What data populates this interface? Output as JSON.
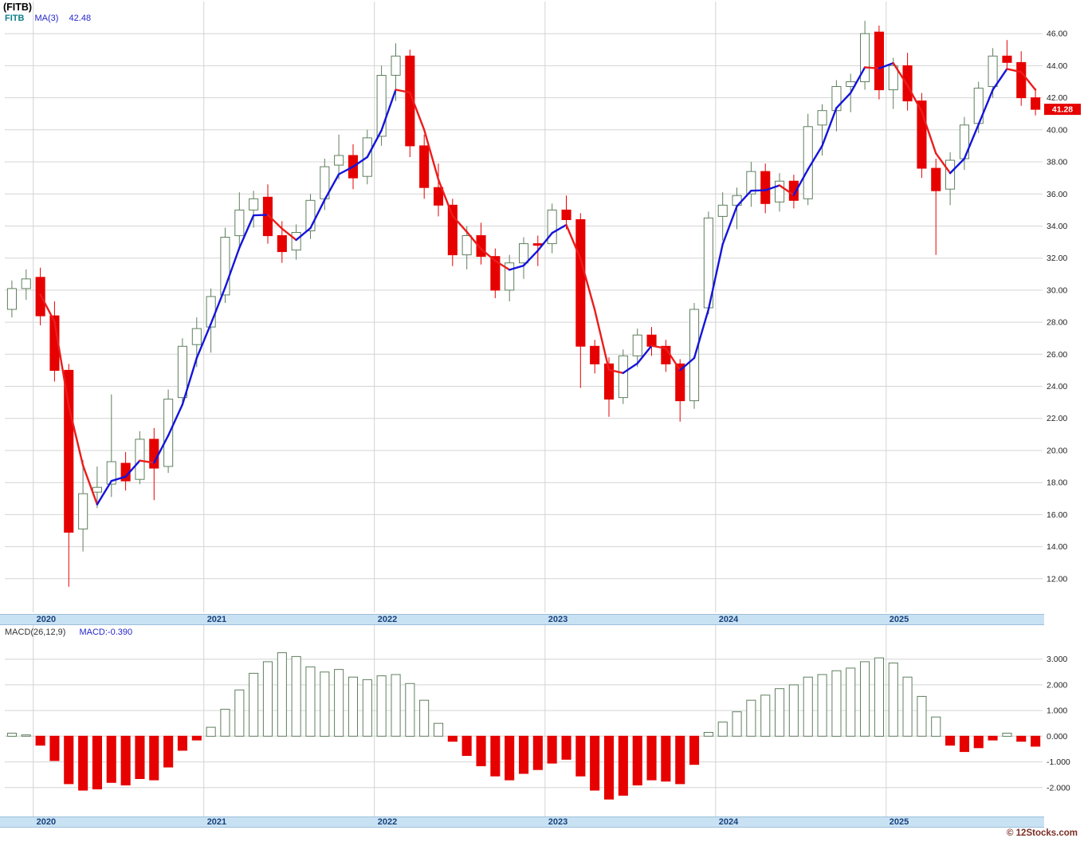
{
  "header": {
    "title": "(FITB)",
    "legend_symbol": "FITB",
    "legend_ma_label": "MA(3)",
    "legend_ma_value": "42.48"
  },
  "macd_header": {
    "label": "MACD(26,12,9)",
    "value": "MACD:-0.390"
  },
  "footer": {
    "copyright": "© 12Stocks.com"
  },
  "colors": {
    "grid": "#d4d4d4",
    "axis_text": "#222222",
    "up_fill": "#ffffff",
    "up_stroke": "#5f7f5f",
    "down": "#e60000",
    "ma_up": "#1414dc",
    "ma_down": "#ec1c1c",
    "tag_bg": "#e60000",
    "tag_text": "#ffffff",
    "strip_bg": "#c9e2f3",
    "strip_text": "#16407c",
    "copyright": "#7b2d26"
  },
  "chart_data": [
    {
      "type": "candlestick",
      "symbol": "FITB",
      "title": "(FITB)",
      "ma": {
        "label": "MA(3)",
        "value": 42.48
      },
      "last_price": "41.28",
      "years": [
        "2020",
        "2021",
        "2022",
        "2023",
        "2024",
        "2025"
      ],
      "y_ticks": [
        46,
        44,
        42,
        40,
        38,
        36,
        34,
        32,
        30,
        28,
        26,
        24,
        22,
        20,
        18,
        16,
        14,
        12
      ],
      "y_min": 10.2,
      "y_max": 47.8,
      "ohlc": [
        [
          "2019-11",
          28.8,
          30.6,
          28.3,
          30.1
        ],
        [
          "2019-12",
          30.1,
          31.3,
          29.4,
          30.7
        ],
        [
          "2020-01",
          30.8,
          31.4,
          27.8,
          28.4
        ],
        [
          "2020-02",
          28.4,
          29.3,
          24.3,
          25.0
        ],
        [
          "2020-03",
          25.0,
          25.4,
          11.5,
          14.9
        ],
        [
          "2020-04",
          15.1,
          19.4,
          13.7,
          17.3
        ],
        [
          "2020-05",
          17.4,
          19.0,
          16.4,
          17.7
        ],
        [
          "2020-06",
          17.9,
          23.5,
          17.1,
          19.3
        ],
        [
          "2020-07",
          19.2,
          19.9,
          17.5,
          18.1
        ],
        [
          "2020-08",
          18.2,
          21.2,
          17.9,
          20.7
        ],
        [
          "2020-09",
          20.7,
          21.4,
          16.9,
          18.9
        ],
        [
          "2020-10",
          19.0,
          23.8,
          18.6,
          23.2
        ],
        [
          "2020-11",
          23.3,
          27.0,
          22.8,
          26.5
        ],
        [
          "2020-12",
          26.6,
          28.3,
          25.2,
          27.6
        ],
        [
          "2021-01",
          27.7,
          30.1,
          26.1,
          29.6
        ],
        [
          "2021-02",
          29.7,
          33.9,
          29.2,
          33.3
        ],
        [
          "2021-03",
          33.4,
          36.1,
          32.5,
          35.0
        ],
        [
          "2021-04",
          35.0,
          36.2,
          33.9,
          35.7
        ],
        [
          "2021-05",
          35.8,
          36.6,
          32.9,
          33.4
        ],
        [
          "2021-06",
          33.4,
          34.3,
          31.7,
          32.4
        ],
        [
          "2021-07",
          32.5,
          34.1,
          31.9,
          33.6
        ],
        [
          "2021-08",
          33.7,
          36.0,
          33.2,
          35.6
        ],
        [
          "2021-09",
          35.7,
          38.2,
          35.0,
          37.7
        ],
        [
          "2021-10",
          37.8,
          39.7,
          36.9,
          38.4
        ],
        [
          "2021-11",
          38.4,
          39.1,
          36.3,
          37.0
        ],
        [
          "2021-12",
          37.1,
          40.0,
          36.6,
          39.5
        ],
        [
          "2022-01",
          39.6,
          44.0,
          39.0,
          43.4
        ],
        [
          "2022-02",
          43.4,
          45.4,
          41.8,
          44.6
        ],
        [
          "2022-03",
          44.6,
          45.0,
          38.3,
          39.0
        ],
        [
          "2022-04",
          39.0,
          39.7,
          35.7,
          36.4
        ],
        [
          "2022-05",
          36.4,
          37.9,
          34.6,
          35.3
        ],
        [
          "2022-06",
          35.3,
          35.7,
          31.5,
          32.2
        ],
        [
          "2022-07",
          32.2,
          34.0,
          31.3,
          33.4
        ],
        [
          "2022-08",
          33.4,
          34.2,
          31.6,
          32.1
        ],
        [
          "2022-09",
          32.1,
          32.6,
          29.5,
          30.0
        ],
        [
          "2022-10",
          30.0,
          32.2,
          29.3,
          31.7
        ],
        [
          "2022-11",
          31.7,
          33.3,
          30.7,
          32.9
        ],
        [
          "2022-12",
          32.9,
          33.4,
          31.5,
          32.8
        ],
        [
          "2023-01",
          32.9,
          35.4,
          32.3,
          35.0
        ],
        [
          "2023-02",
          35.0,
          35.9,
          33.8,
          34.4
        ],
        [
          "2023-03",
          34.4,
          34.8,
          23.9,
          26.5
        ],
        [
          "2023-04",
          26.5,
          26.9,
          24.8,
          25.4
        ],
        [
          "2023-05",
          25.4,
          25.8,
          22.1,
          23.2
        ],
        [
          "2023-06",
          23.3,
          26.3,
          22.9,
          25.9
        ],
        [
          "2023-07",
          25.9,
          27.6,
          25.2,
          27.2
        ],
        [
          "2023-08",
          27.2,
          27.7,
          25.9,
          26.5
        ],
        [
          "2023-09",
          26.5,
          26.9,
          24.9,
          25.4
        ],
        [
          "2023-10",
          25.4,
          25.7,
          21.8,
          23.1
        ],
        [
          "2023-11",
          23.1,
          29.2,
          22.6,
          28.8
        ],
        [
          "2023-12",
          28.9,
          34.9,
          28.5,
          34.5
        ],
        [
          "2024-01",
          34.6,
          36.1,
          33.1,
          35.3
        ],
        [
          "2024-02",
          35.3,
          36.4,
          33.8,
          35.9
        ],
        [
          "2024-03",
          36.0,
          38.0,
          35.2,
          37.4
        ],
        [
          "2024-04",
          37.4,
          37.9,
          34.8,
          35.4
        ],
        [
          "2024-05",
          35.5,
          37.3,
          34.9,
          36.8
        ],
        [
          "2024-06",
          36.8,
          37.2,
          35.1,
          35.6
        ],
        [
          "2024-07",
          35.7,
          41.0,
          35.3,
          40.2
        ],
        [
          "2024-08",
          40.3,
          41.6,
          38.4,
          41.2
        ],
        [
          "2024-09",
          41.2,
          43.1,
          39.9,
          42.7
        ],
        [
          "2024-10",
          42.7,
          43.5,
          41.1,
          43.0
        ],
        [
          "2024-11",
          43.0,
          46.8,
          42.5,
          46.0
        ],
        [
          "2024-12",
          46.1,
          46.5,
          41.9,
          42.5
        ],
        [
          "2025-01",
          42.5,
          44.5,
          41.3,
          44.0
        ],
        [
          "2025-02",
          44.0,
          44.8,
          41.2,
          41.8
        ],
        [
          "2025-03",
          41.8,
          42.3,
          37.0,
          37.6
        ],
        [
          "2025-04",
          37.6,
          38.2,
          32.2,
          36.2
        ],
        [
          "2025-05",
          36.3,
          38.6,
          35.3,
          38.1
        ],
        [
          "2025-06",
          38.2,
          40.8,
          37.5,
          40.3
        ],
        [
          "2025-07",
          40.4,
          43.0,
          39.8,
          42.6
        ],
        [
          "2025-08",
          42.7,
          45.1,
          42.0,
          44.6
        ],
        [
          "2025-09",
          44.6,
          45.6,
          43.8,
          44.2
        ],
        [
          "2025-10",
          44.2,
          44.9,
          41.5,
          42.0
        ],
        [
          "2025-11",
          42.0,
          42.6,
          40.9,
          41.28
        ]
      ]
    },
    {
      "type": "bar",
      "indicator": "MACD(26,12,9)",
      "last_value": -0.39,
      "y_ticks": [
        3,
        2,
        1,
        0,
        -1,
        -2
      ],
      "y_min": -3.0,
      "y_max": 4.2,
      "values": [
        0.12,
        0.05,
        -0.35,
        -0.95,
        -1.85,
        -2.1,
        -2.05,
        -1.8,
        -1.9,
        -1.65,
        -1.7,
        -1.2,
        -0.55,
        -0.15,
        0.35,
        1.05,
        1.8,
        2.45,
        2.9,
        3.25,
        3.1,
        2.7,
        2.5,
        2.6,
        2.3,
        2.2,
        2.35,
        2.4,
        2.05,
        1.4,
        0.5,
        -0.2,
        -0.75,
        -1.15,
        -1.55,
        -1.7,
        -1.45,
        -1.3,
        -1.05,
        -0.9,
        -1.55,
        -2.1,
        -2.45,
        -2.3,
        -1.9,
        -1.7,
        -1.75,
        -1.85,
        -1.1,
        0.15,
        0.55,
        0.95,
        1.4,
        1.6,
        1.85,
        2.0,
        2.3,
        2.4,
        2.55,
        2.65,
        2.9,
        3.05,
        2.85,
        2.3,
        1.55,
        0.75,
        -0.35,
        -0.6,
        -0.45,
        -0.15,
        0.12,
        -0.2,
        -0.39
      ]
    }
  ]
}
